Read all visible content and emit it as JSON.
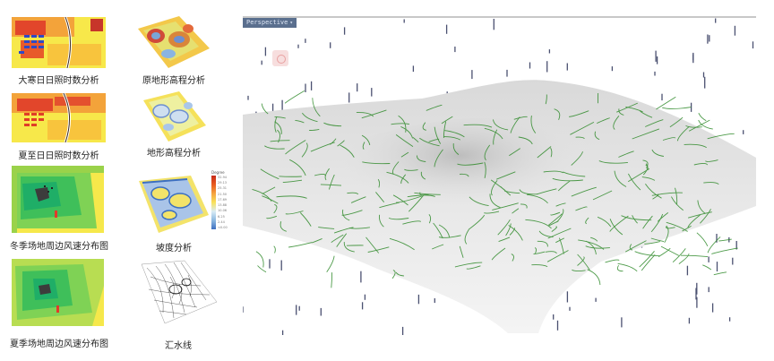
{
  "thumbnails": [
    {
      "caption": "大寒日日照时数分析",
      "kind": "sunlight-winter"
    },
    {
      "caption": "原地形高程分析",
      "kind": "original-elevation"
    },
    {
      "caption": "夏至日日照时数分析",
      "kind": "sunlight-summer"
    },
    {
      "caption": "地形高程分析",
      "kind": "terrain-elevation"
    },
    {
      "caption": "冬季场地周边风速分布图",
      "kind": "wind-winter"
    },
    {
      "caption": "坡度分析",
      "kind": "slope"
    },
    {
      "caption": "夏季场地周边风速分布图",
      "kind": "wind-summer"
    },
    {
      "caption": "汇水线",
      "kind": "catchment-lines"
    }
  ],
  "slope_legend": {
    "title": "Degree",
    "ticks": [
      "32.94",
      "29.13",
      "25.31",
      "21.50",
      "17.69",
      "13.88",
      "10.06",
      "6.25",
      "2.44",
      "<0.00"
    ]
  },
  "viewport": {
    "tab_label": "Perspective",
    "icon": "perspective-cube-icon"
  },
  "colors": {
    "terrain": "#e6e6e6",
    "flow_lines": "#2f8a2a",
    "viewport_tab": "#5a6f8e"
  }
}
